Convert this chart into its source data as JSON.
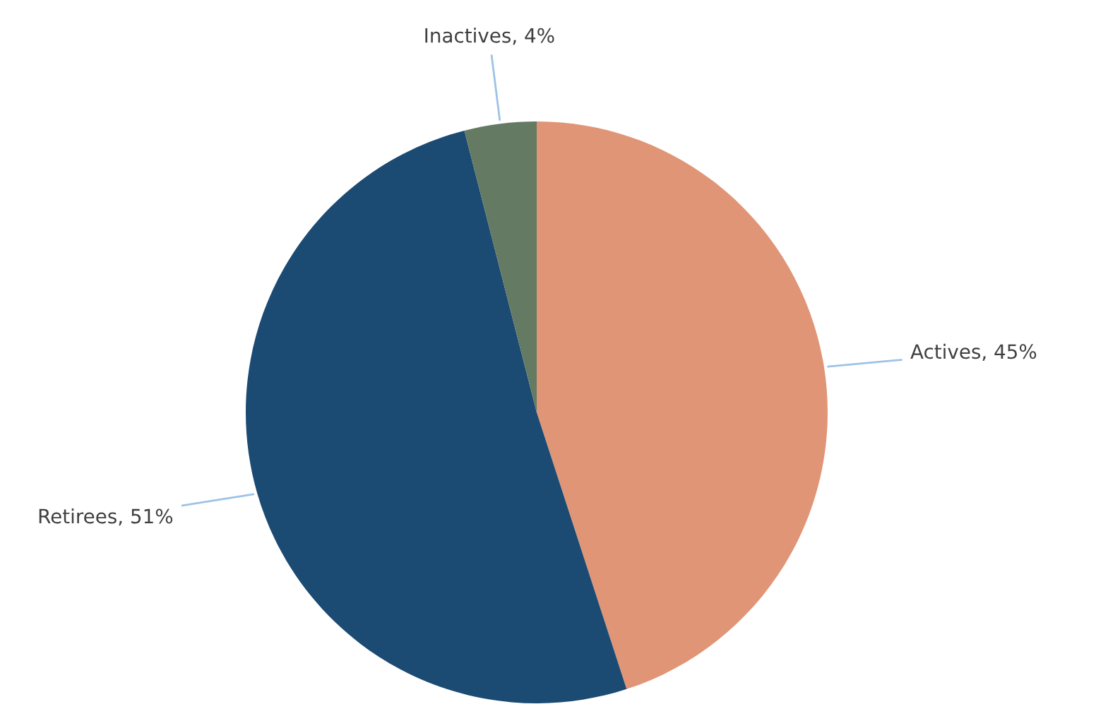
{
  "chart_data": {
    "type": "pie",
    "categories": [
      "Actives",
      "Retirees",
      "Inactives"
    ],
    "values": [
      45,
      51,
      4
    ],
    "value_labels": [
      "45%",
      "51%",
      "4%"
    ],
    "colors": [
      "#e09576",
      "#1b4a72",
      "#647a63"
    ],
    "legend": false
  }
}
